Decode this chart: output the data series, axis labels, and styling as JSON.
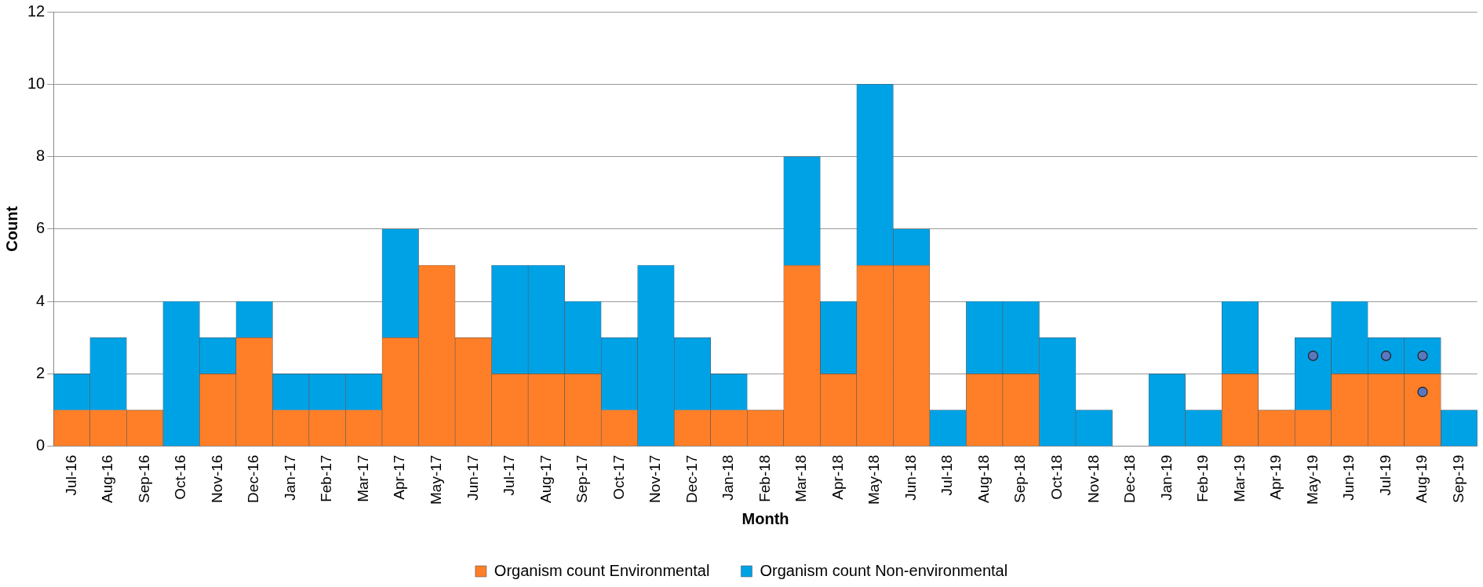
{
  "chart_data": {
    "type": "bar",
    "stacked": true,
    "xlabel": "Month",
    "ylabel": "Count",
    "categories": [
      "Jul-16",
      "Aug-16",
      "Sep-16",
      "Oct-16",
      "Nov-16",
      "Dec-16",
      "Jan-17",
      "Feb-17",
      "Mar-17",
      "Apr-17",
      "May-17",
      "Jun-17",
      "Jul-17",
      "Aug-17",
      "Sep-17",
      "Oct-17",
      "Nov-17",
      "Dec-17",
      "Jan-18",
      "Feb-18",
      "Mar-18",
      "Apr-18",
      "May-18",
      "Jun-18",
      "Jul-18",
      "Aug-18",
      "Sep-18",
      "Oct-18",
      "Nov-18",
      "Dec-18",
      "Jan-19",
      "Feb-19",
      "Mar-19",
      "Apr-19",
      "May-19",
      "Jun-19",
      "Jul-19",
      "Aug-19",
      "Sep-19"
    ],
    "series": [
      {
        "name": "Organism count Environmental",
        "color": "#fe7f27",
        "values": [
          1,
          1,
          1,
          0,
          2,
          3,
          1,
          1,
          1,
          3,
          5,
          3,
          2,
          2,
          2,
          1,
          0,
          1,
          1,
          1,
          5,
          2,
          5,
          5,
          0,
          2,
          2,
          0,
          0,
          0,
          0,
          0,
          2,
          1,
          1,
          2,
          2,
          2,
          0
        ]
      },
      {
        "name": "Organism count Non-environmental",
        "color": "#00a2e6",
        "values": [
          1,
          2,
          0,
          4,
          1,
          1,
          1,
          1,
          1,
          3,
          0,
          0,
          3,
          3,
          2,
          2,
          5,
          2,
          1,
          0,
          3,
          2,
          5,
          1,
          1,
          2,
          2,
          3,
          1,
          0,
          2,
          1,
          2,
          0,
          2,
          2,
          1,
          1,
          1
        ]
      },
      {
        "type": "scatter",
        "color": "#5a78c0",
        "x": [
          "May-19",
          "Jul-19",
          "Aug-19",
          "Aug-19"
        ],
        "values": [
          2.5,
          2.5,
          2.5,
          1.5
        ]
      }
    ],
    "ylim": [
      0,
      12
    ],
    "yticks": [
      0,
      2,
      4,
      6,
      8,
      10,
      12
    ],
    "grid": "y",
    "legend": "bottom",
    "marker": "circle"
  }
}
